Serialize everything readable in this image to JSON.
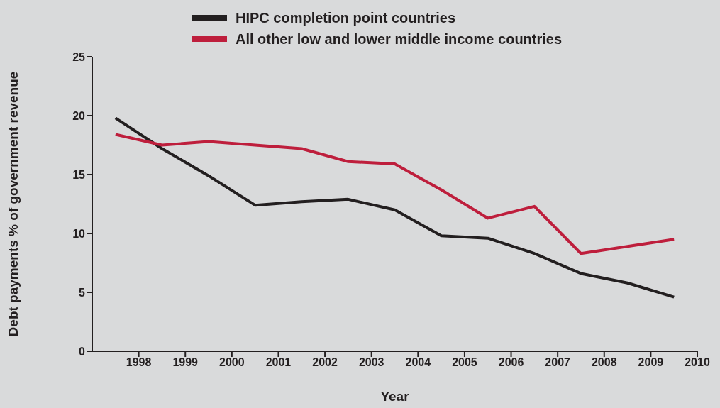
{
  "chart_data": {
    "type": "line",
    "xlabel": "Year",
    "ylabel": "Debt payments % of government revenue",
    "x": [
      1997.5,
      1998.5,
      1999.5,
      2000.5,
      2001.5,
      2002.5,
      2003.5,
      2004.5,
      2005.5,
      2006.5,
      2007.5,
      2008.5,
      2009.5
    ],
    "series": [
      {
        "name": "HIPC completion point countries",
        "color": "#231f20",
        "values": [
          19.8,
          17.2,
          14.9,
          12.4,
          12.7,
          12.9,
          12.0,
          9.8,
          9.6,
          8.3,
          6.6,
          5.8,
          4.6
        ]
      },
      {
        "name": "All other low and lower middle income countries",
        "color": "#be1e3c",
        "values": [
          18.4,
          17.5,
          17.8,
          17.5,
          17.2,
          16.1,
          15.9,
          13.7,
          11.3,
          12.3,
          8.3,
          8.9,
          9.5
        ]
      }
    ],
    "xlim": [
      1997,
      2010
    ],
    "xticks": [
      1998,
      1999,
      2000,
      2001,
      2002,
      2003,
      2004,
      2005,
      2006,
      2007,
      2008,
      2009,
      2010
    ],
    "ylim": [
      0,
      25
    ],
    "yticks": [
      0,
      5,
      10,
      15,
      20,
      25
    ],
    "grid": false,
    "legend": "top",
    "marker": "none",
    "line_style": "solid"
  }
}
